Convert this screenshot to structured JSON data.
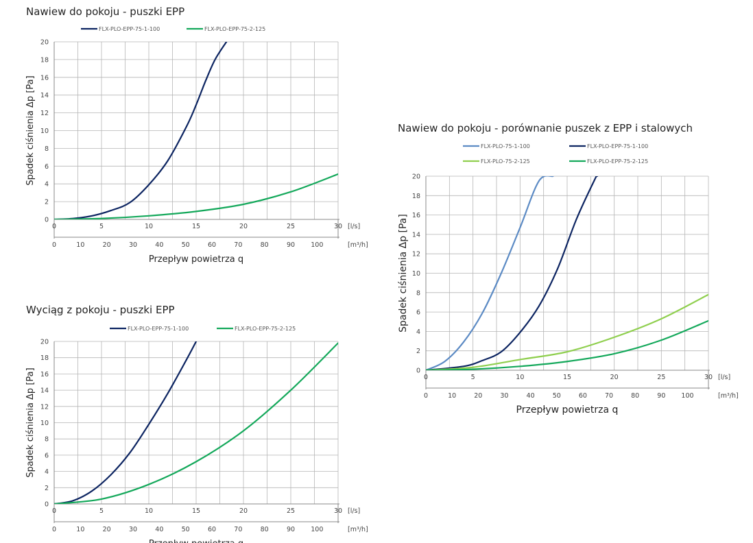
{
  "colors": {
    "epp_100": "#0c2461",
    "epp_125": "#13a85a",
    "steel_100": "#5b8ac4",
    "steel_125": "#8fcf4e",
    "grid": "#b5b5b5"
  },
  "chart_data": [
    {
      "type": "line",
      "title": "Nawiew do pokoju - puszki EPP",
      "xlabel": "Przepływ powietrza q",
      "ylabel": "Spadek ciśnienia Δp [Pa]",
      "x_unit": "[l/s]",
      "x2_unit": "[m³/h]",
      "xlim": [
        0,
        30
      ],
      "ylim": [
        0,
        20
      ],
      "xticks": [
        0,
        5,
        10,
        15,
        20,
        25,
        30
      ],
      "x2ticks": [
        0,
        10,
        20,
        30,
        40,
        50,
        60,
        70,
        80,
        90,
        100
      ],
      "yticks": [
        0,
        2,
        4,
        6,
        8,
        10,
        12,
        14,
        16,
        18,
        20
      ],
      "grid": true,
      "legend_position": "top",
      "series": [
        {
          "name": "FLX-PLO-EPP-75-1-100",
          "color": "#0c2461",
          "x": [
            0,
            2,
            4,
            6,
            8,
            10,
            12,
            14,
            15,
            16,
            17,
            18.2
          ],
          "y": [
            0,
            0.1,
            0.4,
            1.0,
            1.9,
            3.9,
            6.6,
            10.5,
            12.9,
            15.6,
            18.0,
            20.0
          ]
        },
        {
          "name": "FLX-PLO-EPP-75-2-125",
          "color": "#13a85a",
          "x": [
            0,
            5,
            10,
            15,
            20,
            25,
            30
          ],
          "y": [
            0,
            0.1,
            0.4,
            0.9,
            1.7,
            3.1,
            5.1
          ]
        }
      ]
    },
    {
      "type": "line",
      "title": "Wyciąg z pokoju - puszki EPP",
      "xlabel": "Przepływ powietrza q",
      "ylabel": "Spadek ciśnienia Δp [Pa]",
      "x_unit": "[l/s]",
      "x2_unit": "[m³/h]",
      "xlim": [
        0,
        30
      ],
      "ylim": [
        0,
        20
      ],
      "xticks": [
        0,
        5,
        10,
        15,
        20,
        25,
        30
      ],
      "x2ticks": [
        0,
        10,
        20,
        30,
        40,
        50,
        60,
        70,
        80,
        90,
        100
      ],
      "yticks": [
        0,
        2,
        4,
        6,
        8,
        10,
        12,
        14,
        16,
        18,
        20
      ],
      "grid": true,
      "legend_position": "top",
      "series": [
        {
          "name": "FLX-PLO-EPP-75-1-100",
          "color": "#0c2461",
          "x": [
            0,
            2,
            4,
            6,
            8,
            10,
            12,
            14,
            15
          ],
          "y": [
            0,
            0.4,
            1.6,
            3.6,
            6.3,
            9.8,
            13.6,
            17.8,
            20.0
          ]
        },
        {
          "name": "FLX-PLO-EPP-75-2-125",
          "color": "#13a85a",
          "x": [
            0,
            5,
            10,
            15,
            20,
            25,
            30
          ],
          "y": [
            0,
            0.6,
            2.4,
            5.2,
            9.0,
            14.0,
            19.8
          ]
        }
      ]
    },
    {
      "type": "line",
      "title": "Nawiew do pokoju - porównanie puszek z EPP i stalowych",
      "xlabel": "Przepływ powietrza q",
      "ylabel": "Spadek ciśnienia Δp [Pa]",
      "x_unit": "[l/s]",
      "x2_unit": "[m³/h]",
      "xlim": [
        0,
        30
      ],
      "ylim": [
        0,
        20
      ],
      "xticks": [
        0,
        5,
        10,
        15,
        20,
        25,
        30
      ],
      "x2ticks": [
        0,
        10,
        20,
        30,
        40,
        50,
        60,
        70,
        80,
        90,
        100
      ],
      "yticks": [
        0,
        2,
        4,
        6,
        8,
        10,
        12,
        14,
        16,
        18,
        20
      ],
      "grid": true,
      "legend_position": "top",
      "series": [
        {
          "name": "FLX-PLO-75-1-100",
          "color": "#5b8ac4",
          "x": [
            0,
            2,
            4,
            6,
            8,
            10,
            12,
            13.5
          ],
          "y": [
            0,
            0.9,
            2.9,
            5.9,
            10.0,
            14.7,
            19.5,
            20.0
          ]
        },
        {
          "name": "FLX-PLO-EPP-75-1-100",
          "color": "#0c2461",
          "x": [
            0,
            4,
            6,
            8,
            10,
            12,
            14,
            16,
            18,
            18.2
          ],
          "y": [
            0,
            0.4,
            1.0,
            1.9,
            3.9,
            6.6,
            10.5,
            15.6,
            19.8,
            20.0
          ]
        },
        {
          "name": "FLX-PLO-75-2-125",
          "color": "#8fcf4e",
          "x": [
            0,
            5,
            10,
            15,
            20,
            25,
            30
          ],
          "y": [
            0,
            0.3,
            1.1,
            1.9,
            3.4,
            5.3,
            7.8
          ]
        },
        {
          "name": "FLX-PLO-EPP-75-2-125",
          "color": "#13a85a",
          "x": [
            0,
            5,
            10,
            15,
            20,
            25,
            30
          ],
          "y": [
            0,
            0.1,
            0.4,
            0.9,
            1.7,
            3.1,
            5.1
          ]
        }
      ]
    }
  ]
}
